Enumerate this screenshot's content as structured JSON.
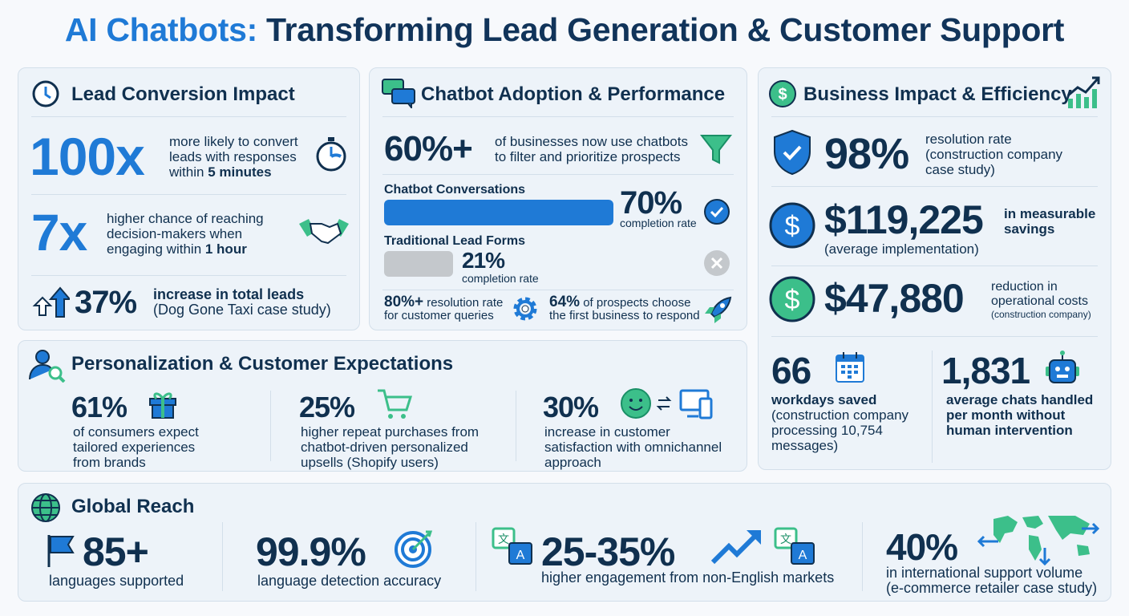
{
  "title": {
    "accent": "AI Chatbots:",
    "rest": " Transforming Lead Generation & Customer Support"
  },
  "colors": {
    "accent": "#1f7ad6",
    "navy": "#10304f",
    "green": "#3cbf8a",
    "gray": "#c4c8cc"
  },
  "lead": {
    "heading": "Lead Conversion Impact",
    "icon": "clock-icon",
    "stat1": {
      "value": "100x",
      "text1": "more likely to convert",
      "text2": "leads with responses",
      "text3a": "within ",
      "text3b": "5 minutes",
      "icon": "stopwatch-icon"
    },
    "stat2": {
      "value": "7x",
      "text1": "higher chance of reaching",
      "text2": "decision-makers when",
      "text3a": "engaging within ",
      "text3b": "1 hour",
      "icon": "handshake-icon"
    },
    "stat3": {
      "value": "37%",
      "text1": "increase in total leads",
      "text2": "(Dog Gone Taxi case study)",
      "icon": "arrows-up-icon"
    }
  },
  "adoption": {
    "heading": "Chatbot Adoption & Performance",
    "icon": "chat-bubbles-icon",
    "stat1": {
      "value": "60%+",
      "text1": "of businesses now use chatbots",
      "text2": "to filter and prioritize prospects",
      "icon": "funnel-icon"
    },
    "bars": [
      {
        "label": "Chatbot Conversations",
        "value": "70%",
        "percent": 70,
        "caption": "completion rate",
        "icon": "check-circle-icon"
      },
      {
        "label": "Traditional Lead Forms",
        "value": "21%",
        "percent": 21,
        "caption": "completion rate",
        "icon": "x-circle-icon"
      }
    ],
    "stat2": {
      "value": "80%+",
      "text1": " resolution rate",
      "text2": "for customer queries",
      "icon": "gear-icon"
    },
    "stat3": {
      "value": "64%",
      "text1": " of prospects choose",
      "text2": "the first business to respond",
      "icon": "rocket-icon"
    }
  },
  "business": {
    "heading": "Business Impact & Efficiency",
    "icon": "dollar-icon",
    "icon2": "growth-chart-icon",
    "stat1": {
      "value": "98%",
      "text1": "resolution rate",
      "text2": "(construction company",
      "text3": "case study)",
      "icon": "shield-check-icon"
    },
    "stat2": {
      "value": "$119,225",
      "text1": "in measurable",
      "text2": "savings",
      "text3": "(average implementation)",
      "icon": "dollar-icon"
    },
    "stat3": {
      "value": "$47,880",
      "text1": "reduction in",
      "text2": "operational costs",
      "text3": "(construction company)",
      "icon": "dollar-icon"
    },
    "stat4": {
      "value": "66",
      "text1": "workdays saved",
      "text2": "(construction company",
      "text3": "processing 10,754",
      "text4": "messages)",
      "icon": "calendar-icon"
    },
    "stat5": {
      "value": "1,831",
      "text1": "average chats handled",
      "text2": "per month without",
      "text3": "human intervention",
      "icon": "robot-icon"
    }
  },
  "personal": {
    "heading": "Personalization & Customer Expectations",
    "icon": "user-search-icon",
    "items": [
      {
        "value": "61%",
        "lines": [
          "of consumers expect",
          "tailored experiences",
          "from brands"
        ],
        "icon": "gift-icon"
      },
      {
        "value": "25%",
        "lines": [
          "higher repeat purchases from",
          "chatbot-driven personalized",
          "upsells (Shopify users)"
        ],
        "icon": "cart-icon"
      },
      {
        "value": "30%",
        "lines": [
          "increase in customer",
          "satisfaction with omnichannel",
          "approach"
        ],
        "icon": "smiley-devices-icon"
      }
    ]
  },
  "global": {
    "heading": "Global Reach",
    "icon": "globe-icon",
    "items": [
      {
        "value": "85+",
        "text": "languages supported",
        "icon": "flag-icon"
      },
      {
        "value": "99.9%",
        "text": "language detection accuracy",
        "icon": "target-icon"
      },
      {
        "value": "25-35%",
        "text": "higher engagement from non-English markets",
        "icon": "translate-icon"
      },
      {
        "value": "40%",
        "text1": "in international support volume",
        "text2": "(e-commerce retailer case study)",
        "icon": "world-map-icon"
      }
    ]
  }
}
